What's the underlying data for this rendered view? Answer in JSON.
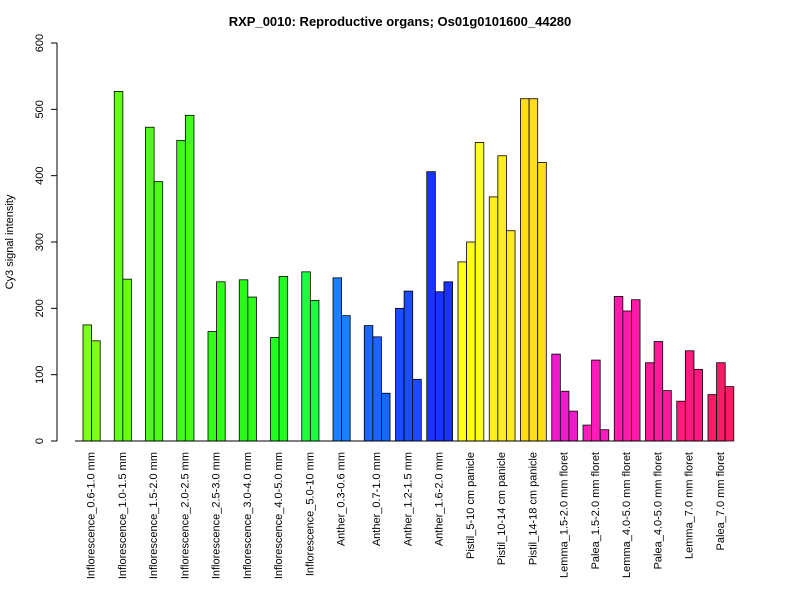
{
  "chart_data": {
    "type": "bar",
    "title": "RXP_0010: Reproductive organs; Os01g0101600_44280",
    "xlabel": "",
    "ylabel": "Cy3 signal intensity",
    "ylim": [
      0,
      600
    ],
    "yticks": [
      0,
      100,
      200,
      300,
      400,
      500,
      600
    ],
    "grid": false,
    "legend": "none",
    "categories": [
      "Inflorescence_0.6-1.0 mm",
      "Inflorescence_1.0-1.5 mm",
      "Inflorescence_1.5-2.0 mm",
      "Inflorescence_2.0-2.5 mm",
      "Inflorescence_2.5-3.0 mm",
      "Inflorescence_3.0-4.0 mm",
      "Inflorescence_4.0-5.0 mm",
      "Inflorescence_5.0-10 mm",
      "Anther_0.3-0.6 mm",
      "Anther_0.7-1.0 mm",
      "Anther_1.2-1.5 mm",
      "Anther_1.6-2.0 mm",
      "Pistil_5-10 cm panicle",
      "Pistil_10-14 cm panicle",
      "Pistil_14-18 cm panicle",
      "Lemma_1.5-2.0 mm floret",
      "Palea_1.5-2.0 mm floret",
      "Lemma_4.0-5.0 mm floret",
      "Palea_4.0-5.0 mm floret",
      "Lemma_7.0 mm floret",
      "Palea_7.0 mm floret"
    ],
    "groups": [
      {
        "values": [
          175,
          151
        ],
        "color": "#80ff1a"
      },
      {
        "values": [
          527,
          244
        ],
        "color": "#66ff1a"
      },
      {
        "values": [
          473,
          391
        ],
        "color": "#4dff1a"
      },
      {
        "values": [
          453,
          491
        ],
        "color": "#40ff1a"
      },
      {
        "values": [
          165,
          240
        ],
        "color": "#33ff1a"
      },
      {
        "values": [
          243,
          217
        ],
        "color": "#2aff1a"
      },
      {
        "values": [
          156,
          248
        ],
        "color": "#20ff20"
      },
      {
        "values": [
          255,
          212
        ],
        "color": "#1aff40"
      },
      {
        "values": [
          246,
          189
        ],
        "color": "#1a80ff"
      },
      {
        "values": [
          174,
          157,
          72
        ],
        "color": "#1a66ff"
      },
      {
        "values": [
          200,
          226,
          93
        ],
        "color": "#1a4dff"
      },
      {
        "values": [
          406,
          225,
          240
        ],
        "color": "#1a33ff"
      },
      {
        "values": [
          270,
          300,
          450
        ],
        "color": "#ffff1a"
      },
      {
        "values": [
          368,
          430,
          317
        ],
        "color": "#ffee1a"
      },
      {
        "values": [
          516,
          516,
          420
        ],
        "color": "#ffdd1a"
      },
      {
        "values": [
          131,
          75,
          45
        ],
        "color": "#ee1acc"
      },
      {
        "values": [
          24,
          122,
          17
        ],
        "color": "#ff1abb"
      },
      {
        "values": [
          218,
          196,
          213
        ],
        "color": "#ff1aaa"
      },
      {
        "values": [
          118,
          150,
          76
        ],
        "color": "#ff1a99"
      },
      {
        "values": [
          60,
          136,
          108
        ],
        "color": "#ff1a80"
      },
      {
        "values": [
          70,
          118,
          82
        ],
        "color": "#ff1a66"
      }
    ]
  }
}
